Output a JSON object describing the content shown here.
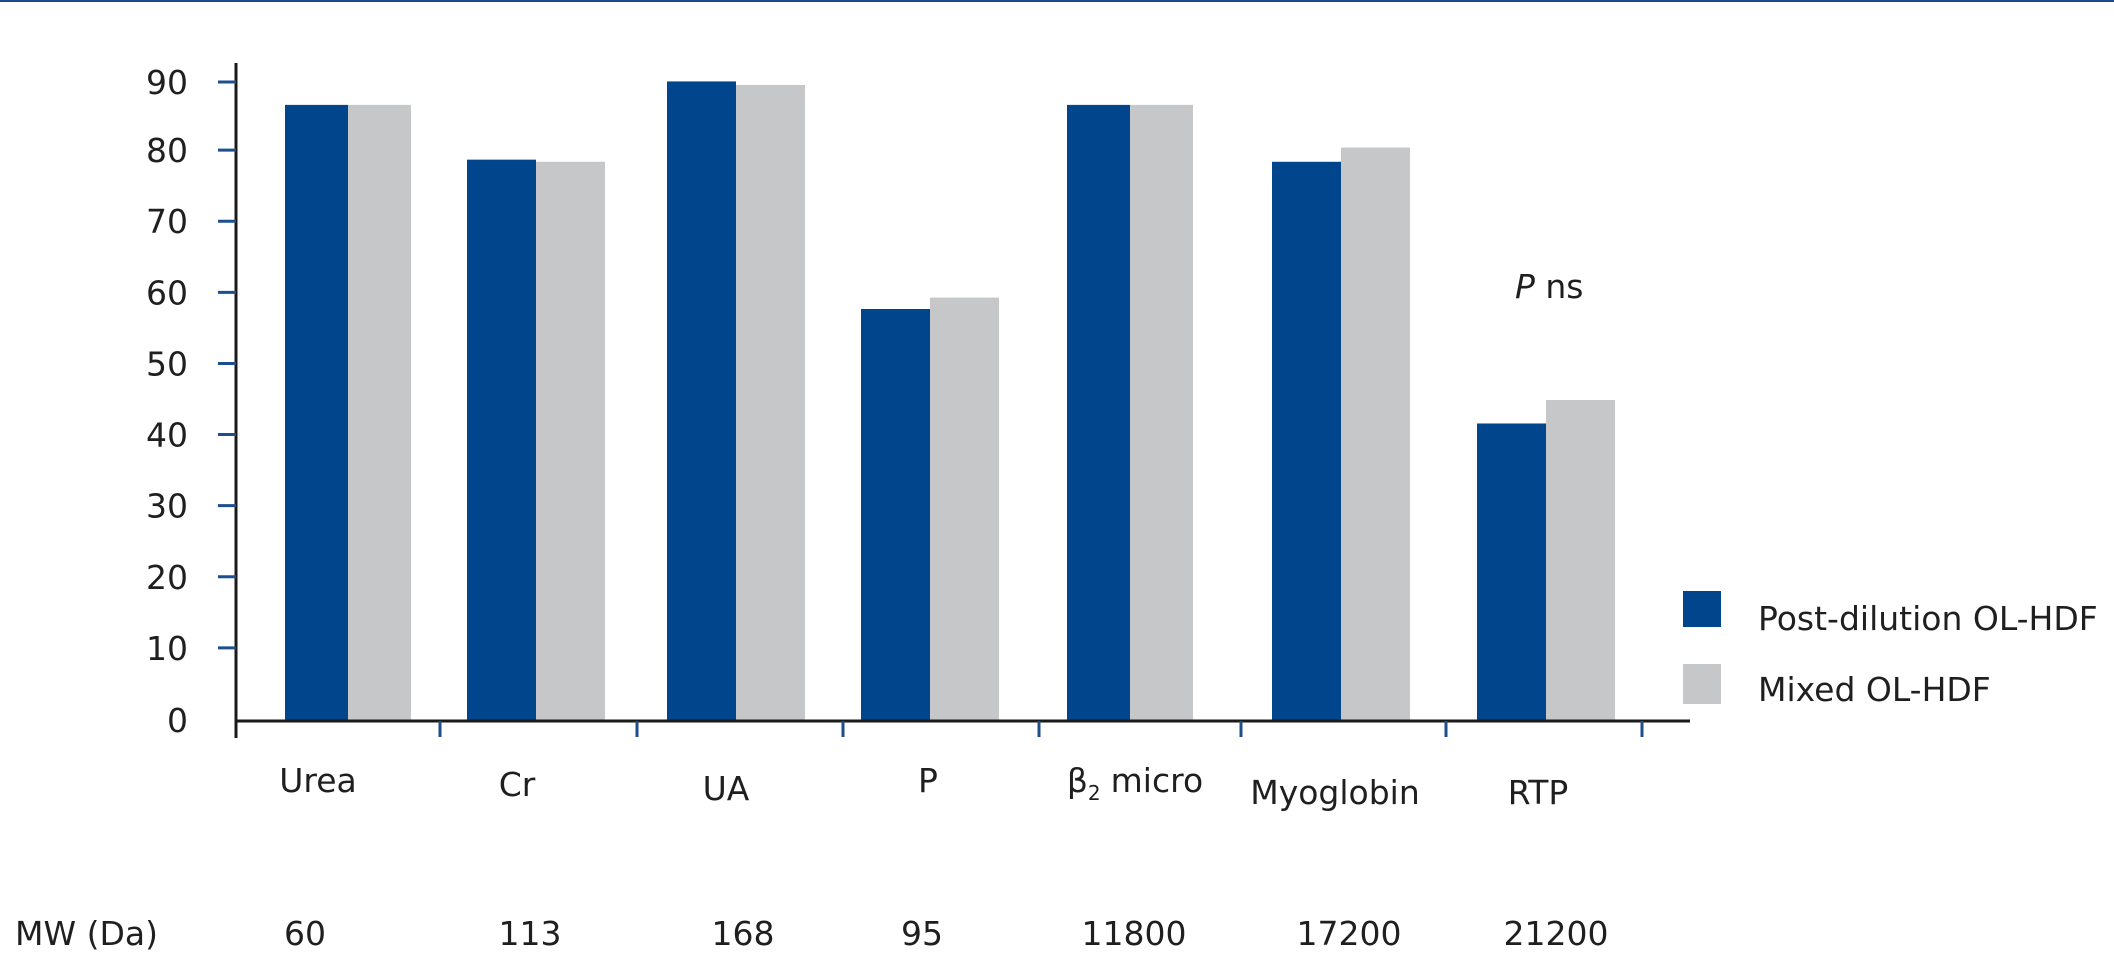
{
  "colors": {
    "post_dilution": "#01468c",
    "mixed": "#c6c7c9",
    "axis": "#1a1a1a",
    "tick_marks": "#1d4f8f",
    "top_rule": "#1a4a8a"
  },
  "chart_data": {
    "type": "bar",
    "categories": [
      "Urea",
      "Cr",
      "UA",
      "P",
      "micro",
      "Myoglobin",
      "RTP"
    ],
    "category_parts": [
      {
        "main": "Urea"
      },
      {
        "main": "Cr"
      },
      {
        "main": "UA"
      },
      {
        "main": "P"
      },
      {
        "prefix": "β",
        "subscript": "2",
        "main": "micro"
      },
      {
        "main": "Myoglobin"
      },
      {
        "main": "RTP"
      }
    ],
    "series": [
      {
        "name": "Post-dilution OL-HDF",
        "values": [
          86.5,
          78.8,
          89.8,
          57.8,
          86.5,
          78.5,
          41.7
        ]
      },
      {
        "name": "Mixed OL-HDF",
        "values": [
          86.5,
          78.5,
          89.3,
          59.4,
          86.5,
          80.5,
          45.0
        ]
      }
    ],
    "ylim": [
      0,
      90
    ],
    "yticks": [
      "0",
      "10",
      "20",
      "30",
      "40",
      "50",
      "60",
      "70",
      "80",
      "90"
    ],
    "ytick_values": [
      0,
      10,
      20,
      30,
      40,
      50,
      60,
      70,
      80,
      90
    ],
    "xlabel": "",
    "ylabel": "",
    "title": "",
    "legend": "right",
    "grid": false,
    "mw": {
      "label": "MW (Da)",
      "values": [
        "60",
        "113",
        "168",
        "95",
        "11800",
        "17200",
        "21200"
      ]
    },
    "annotation": {
      "italic": "P",
      "rest": " ns"
    }
  }
}
